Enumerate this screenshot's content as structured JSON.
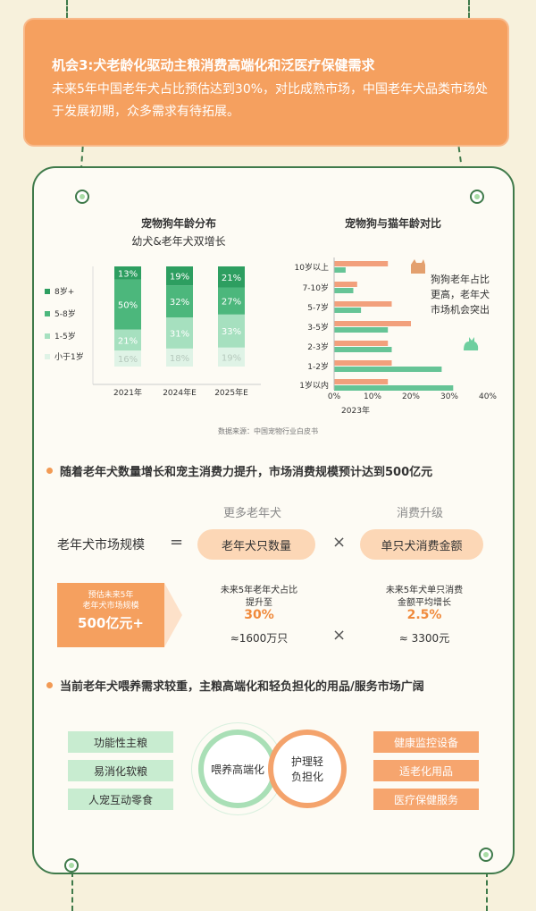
{
  "header": {
    "title": "机会3:犬老龄化驱动主粮消费高端化和泛医疗保健需求",
    "desc": "未来5年中国老年犬占比预估达到30%，对比成熟市场，中国老年犬品类市场处于发展初期，众多需求有待拓展。"
  },
  "chart_data": [
    {
      "type": "bar",
      "stacked": true,
      "title": "宠物狗年龄分布",
      "subtitle": "幼犬&老年犬双增长",
      "categories": [
        "2021年",
        "2024年E",
        "2025年E"
      ],
      "series": [
        {
          "name": "小于1岁",
          "color": "#dff3e6",
          "values": [
            16,
            18,
            19
          ]
        },
        {
          "name": "1-5岁",
          "color": "#a6e0bf",
          "values": [
            21,
            31,
            33
          ]
        },
        {
          "name": "5-8岁",
          "color": "#4cb77c",
          "values": [
            50,
            32,
            27
          ]
        },
        {
          "name": "8岁+",
          "color": "#2d9e60",
          "values": [
            13,
            19,
            21
          ]
        }
      ],
      "labels": [
        [
          "16%",
          "21%",
          "50%",
          "13%"
        ],
        [
          "18%",
          "31%",
          "32%",
          "19%"
        ],
        [
          "19%",
          "33%",
          "27%",
          "21%"
        ]
      ],
      "legend_order": [
        "8岁+",
        "5-8岁",
        "1-5岁",
        "小于1岁"
      ],
      "ylim": [
        0,
        100
      ]
    },
    {
      "type": "bar",
      "orientation": "horizontal",
      "title": "宠物狗与猫年龄对比",
      "xlabel": "2023年",
      "categories": [
        "10岁以上",
        "7-10岁",
        "5-7岁",
        "3-5岁",
        "2-3岁",
        "1-2岁",
        "1岁以内"
      ],
      "series": [
        {
          "name": "dog",
          "color": "#f2a07c",
          "values": [
            14,
            6,
            15,
            20,
            14,
            15,
            14
          ]
        },
        {
          "name": "cat",
          "color": "#66c496",
          "values": [
            3,
            5,
            7,
            14,
            15,
            28,
            31
          ]
        }
      ],
      "xticks": [
        "0%",
        "10%",
        "20%",
        "30%",
        "40%"
      ],
      "xlim": [
        0,
        40
      ],
      "annotation": [
        "狗狗老年占比",
        "更高，老年犬",
        "市场机会突出"
      ]
    }
  ],
  "source": "数据来源：中国宠物行业白皮书",
  "bullet1": "随着老年犬数量增长和宠主消费力提升，市场消费规模预计达到500亿元",
  "formula": {
    "label_more": "更多老年犬",
    "label_upgrade": "消费升级",
    "market": "老年犬市场规模",
    "equals": "=",
    "pill1": "老年犬只数量",
    "times": "×",
    "pill2": "单只犬消费金额"
  },
  "estimate": {
    "line1": "预估未来5年",
    "line2": "老年犬市场规模",
    "value": "500亿元+"
  },
  "left_detail": {
    "line1": "未来5年老年犬占比",
    "line2": "提升至",
    "pct": "30%",
    "approx": "≈1600万只"
  },
  "right_detail": {
    "line1": "未来5年犬单只消费",
    "line2": "金额平均增长",
    "pct": "2.5%",
    "approx": "≈ 3300元"
  },
  "times2": "×",
  "bullet2": "当前老年犬喂养需求较重，主粮高端化和轻负担化的用品/服务市场广阔",
  "green_tags": [
    "功能性主粮",
    "易消化软粮",
    "人宠互动零食"
  ],
  "orange_tags": [
    "健康监控设备",
    "适老化用品",
    "医疗保健服务"
  ],
  "circles": {
    "left": "喂养高端化",
    "right_l1": "护理轻",
    "right_l2": "负担化"
  },
  "colors": {
    "orange": "#f5a05f",
    "green": "#3f7a4a",
    "background": "#f7f1dc"
  }
}
